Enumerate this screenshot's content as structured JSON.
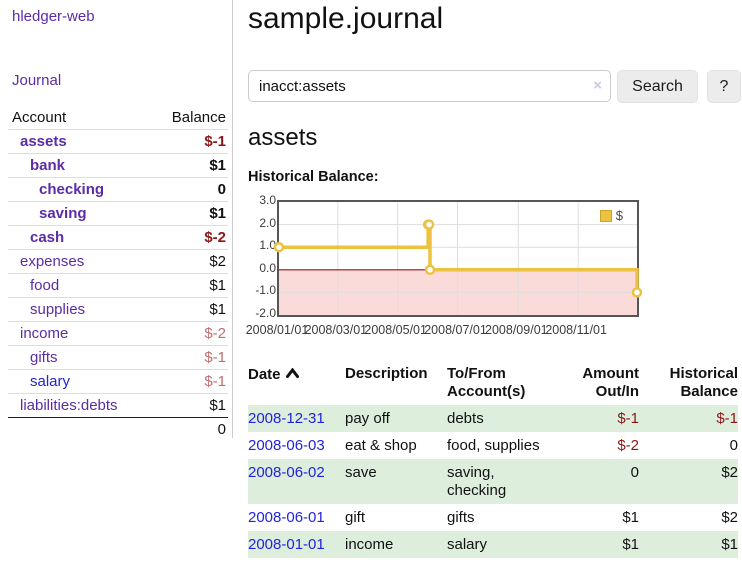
{
  "app": {
    "brand": "hledger-web"
  },
  "sidebar": {
    "nav": {
      "journal_label": "Journal"
    },
    "accounts_table": {
      "headers": {
        "account": "Account",
        "balance": "Balance"
      },
      "rows": [
        {
          "account": "assets",
          "balance": "$-1"
        },
        {
          "account": "bank",
          "balance": "$1"
        },
        {
          "account": "checking",
          "balance": "0"
        },
        {
          "account": "saving",
          "balance": "$1"
        },
        {
          "account": "cash",
          "balance": "$-2"
        },
        {
          "account": "expenses",
          "balance": "$2"
        },
        {
          "account": "food",
          "balance": "$1"
        },
        {
          "account": "supplies",
          "balance": "$1"
        },
        {
          "account": "income",
          "balance": "$-2"
        },
        {
          "account": "gifts",
          "balance": "$-1"
        },
        {
          "account": "salary",
          "balance": "$-1"
        },
        {
          "account": "liabilities:debts",
          "balance": "$1"
        }
      ],
      "total": "0"
    }
  },
  "main": {
    "title": "sample.journal",
    "search": {
      "value": "inacct:assets",
      "clear_icon": "×",
      "search_button": "Search",
      "help_button": "?"
    },
    "account_heading": "assets",
    "chart_heading": "Historical Balance:"
  },
  "chart_data": {
    "type": "line",
    "title": "Historical Balance",
    "series": [
      {
        "name": "$",
        "color": "#edc240",
        "style": "step-after line with open circle markers",
        "points": [
          [
            "2008-01-01",
            1
          ],
          [
            "2008-06-01",
            2
          ],
          [
            "2008-06-02",
            2
          ],
          [
            "2008-06-03",
            0
          ],
          [
            "2008-12-31",
            -1
          ]
        ]
      }
    ],
    "x_range": [
      "2008-01-01",
      "2008-12-31"
    ],
    "ylim": [
      -2,
      3
    ],
    "y_tick_labels": [
      "3.0",
      "2.0",
      "1.0",
      "0.0",
      "-1.0",
      "-2.0"
    ],
    "x_tick_labels": [
      "2008/01/01",
      "2008/03/01",
      "2008/05/01",
      "2008/07/01",
      "2008/09/01",
      "2008/11/01"
    ],
    "grid": true,
    "negative_region_fill": "#fbdada",
    "zero_line_color": "#991414",
    "legend_position": "top-right"
  },
  "transactions": {
    "headers": {
      "date": "Date",
      "description": "Description",
      "accounts": "To/From Account(s)",
      "amount": "Amount Out/In",
      "balance": "Historical Balance"
    },
    "rows": [
      {
        "date": "2008-12-31",
        "description": "pay off",
        "accounts": "debts",
        "amount": "$-1",
        "balance": "$-1"
      },
      {
        "date": "2008-06-03",
        "description": "eat & shop",
        "accounts": "food, supplies",
        "amount": "$-2",
        "balance": "0"
      },
      {
        "date": "2008-06-02",
        "description": "save",
        "accounts": "saving, checking",
        "amount": "0",
        "balance": "$2"
      },
      {
        "date": "2008-06-01",
        "description": "gift",
        "accounts": "gifts",
        "amount": "$1",
        "balance": "$2"
      },
      {
        "date": "2008-01-01",
        "description": "income",
        "accounts": "salary",
        "amount": "$1",
        "balance": "$1"
      }
    ]
  }
}
